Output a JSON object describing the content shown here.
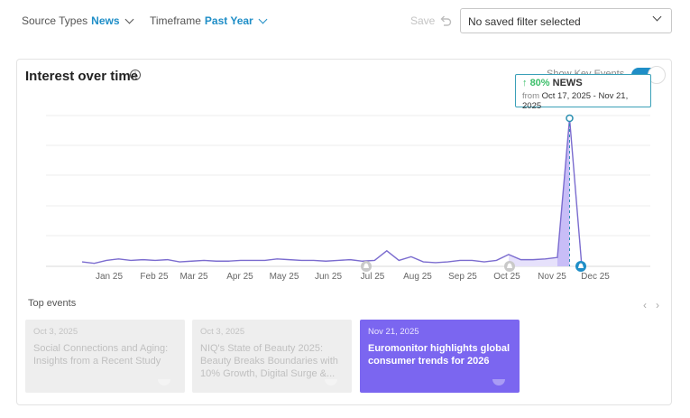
{
  "filters": {
    "source_types_label": "Source Types",
    "source_types_value": "News",
    "timeframe_label": "Timeframe",
    "timeframe_value": "Past Year",
    "save_label": "Save",
    "saved_filter_value": "No saved filter selected"
  },
  "card": {
    "title": "Interest over time",
    "toggle_label": "Show Key Events",
    "toggle_on": true
  },
  "tooltip": {
    "arrow": "↑",
    "percent": "80%",
    "source": "NEWS",
    "from_label": "from",
    "range": "Oct 17, 2025 - Nov 21, 2025"
  },
  "chart_data": {
    "type": "line",
    "title": "Interest over time",
    "x_ticks": [
      "Jan 25",
      "Feb 25",
      "Mar 25",
      "Apr 25",
      "May 25",
      "Jun 25",
      "Jul 25",
      "Aug 25",
      "Sep 25",
      "Oct 25",
      "Nov 25",
      "Dec 25"
    ],
    "series": [
      {
        "name": "News",
        "color": "#7b6ccf",
        "values": [
          3,
          2,
          4,
          5,
          4,
          4.5,
          4,
          4.5,
          3,
          3.5,
          4,
          3.5,
          3.5,
          4,
          4,
          4,
          5,
          4.5,
          4,
          4,
          3.5,
          4,
          4.5,
          3.5,
          4,
          10.5,
          4,
          6.5,
          3,
          2.5,
          3,
          4,
          4,
          3,
          4,
          8,
          4.5,
          4.5,
          5,
          6,
          100,
          0
        ]
      }
    ],
    "grid": true,
    "highlight_range": [
      "Oct 17, 2025",
      "Nov 21, 2025"
    ],
    "key_event_markers": [
      "Jul 25",
      "Oct 25",
      "Nov 25"
    ]
  },
  "top_events": {
    "label": "Top events",
    "prev_icon": "‹",
    "next_icon": "›",
    "items": [
      {
        "date": "Oct 3, 2025",
        "title": "Social Connections and Aging: Insights from a Recent Study",
        "active": false
      },
      {
        "date": "Oct 3, 2025",
        "title": "NIQ's State of Beauty 2025: Beauty Breaks Boundaries with 10% Growth, Digital Surge &...",
        "active": false
      },
      {
        "date": "Nov 21, 2025",
        "title": "Euromonitor highlights global consumer trends for 2026",
        "active": true
      }
    ]
  },
  "icons": {
    "undo": "undo-icon",
    "info": "info-icon",
    "bell": "bell-icon",
    "chevron": "chevron-down-icon"
  }
}
